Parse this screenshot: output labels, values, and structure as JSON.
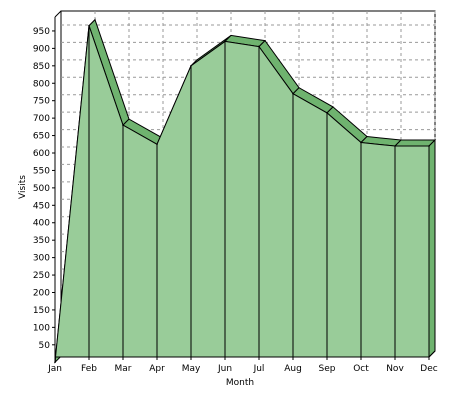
{
  "chart_data": {
    "type": "area",
    "categories": [
      "Jan",
      "Feb",
      "Mar",
      "Apr",
      "May",
      "Jun",
      "Jul",
      "Aug",
      "Sep",
      "Oct",
      "Nov",
      "Dec"
    ],
    "series": [
      {
        "values": [
          0,
          965,
          680,
          625,
          850,
          920,
          905,
          770,
          715,
          630,
          620,
          620
        ]
      }
    ],
    "xlabel": "Month",
    "ylabel": "Visits",
    "yticks": [
      50,
      100,
      150,
      200,
      250,
      300,
      350,
      400,
      450,
      500,
      550,
      600,
      650,
      700,
      750,
      800,
      850,
      900,
      950
    ],
    "ylim": [
      15,
      990
    ],
    "grid": true,
    "three_d": true,
    "colors": {
      "fill": "#99CC99",
      "top_fill": "#6FB36F",
      "stroke": "#000000",
      "grid": "#999999"
    }
  }
}
